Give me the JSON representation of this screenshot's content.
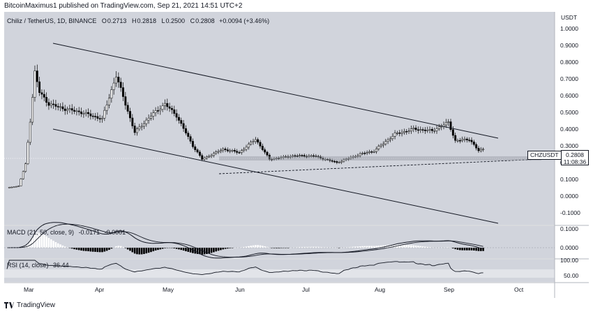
{
  "header": {
    "attribution": "BitcoinMaximus1 published on TradingView.com, Sep 21, 2021 14:51 UTC+2"
  },
  "legend": {
    "symbol": "Chiliz / TetherUS, 1D, BINANCE",
    "open_label": "O",
    "open": "0.2713",
    "high_label": "H",
    "high": "0.2818",
    "low_label": "L",
    "low": "0.2500",
    "close_label": "C",
    "close": "0.2808",
    "change": "+0.0094 (+3.46%)"
  },
  "price_axis": {
    "currency": "USDT",
    "labels": [
      "1.0000",
      "0.9000",
      "0.8000",
      "0.7000",
      "0.6000",
      "0.5000",
      "0.4000",
      "0.3000",
      "0.2000",
      "0.1000",
      "0.0000",
      "-0.1000"
    ]
  },
  "price_tag": {
    "symbol": "CHZUSDT",
    "price": "0.2808",
    "countdown": "11:08:36"
  },
  "macd": {
    "title": "MACD (21, 50, close, 9)",
    "v1": "-0.0171",
    "v2": "-0.0001",
    "axis_labels": [
      "0.1000",
      "0.0000"
    ]
  },
  "rsi": {
    "title": "RSI (14, close)",
    "value": "36.44",
    "axis_labels": [
      "100.00",
      "50.00"
    ]
  },
  "time_axis": [
    "Mar",
    "Apr",
    "May",
    "Jun",
    "Jul",
    "Aug",
    "Sep",
    "Oct"
  ],
  "footer": {
    "brand": "TradingView"
  },
  "colors": {
    "background": "#d1d4dc",
    "up": "#ffffff",
    "down": "#000000",
    "line": "#131722"
  },
  "chart_data": {
    "type": "candlestick",
    "symbol": "CHZUSDT",
    "ylim": [
      -0.13,
      1.07
    ],
    "series": [
      {
        "date": "2021-02-28",
        "close": 0.05
      },
      {
        "date": "2021-03-05",
        "close": 0.06
      },
      {
        "date": "2021-03-08",
        "close": 0.19
      },
      {
        "date": "2021-03-10",
        "close": 0.45
      },
      {
        "date": "2021-03-12",
        "close": 0.74
      },
      {
        "date": "2021-03-14",
        "close": 0.62
      },
      {
        "date": "2021-03-18",
        "close": 0.55
      },
      {
        "date": "2021-03-25",
        "close": 0.52
      },
      {
        "date": "2021-04-01",
        "close": 0.5
      },
      {
        "date": "2021-04-10",
        "close": 0.46
      },
      {
        "date": "2021-04-16",
        "close": 0.72
      },
      {
        "date": "2021-04-20",
        "close": 0.55
      },
      {
        "date": "2021-04-24",
        "close": 0.38
      },
      {
        "date": "2021-05-01",
        "close": 0.48
      },
      {
        "date": "2021-05-07",
        "close": 0.55
      },
      {
        "date": "2021-05-12",
        "close": 0.48
      },
      {
        "date": "2021-05-19",
        "close": 0.3
      },
      {
        "date": "2021-05-23",
        "close": 0.22
      },
      {
        "date": "2021-06-01",
        "close": 0.28
      },
      {
        "date": "2021-06-08",
        "close": 0.26
      },
      {
        "date": "2021-06-15",
        "close": 0.34
      },
      {
        "date": "2021-06-21",
        "close": 0.22
      },
      {
        "date": "2021-07-01",
        "close": 0.24
      },
      {
        "date": "2021-07-10",
        "close": 0.24
      },
      {
        "date": "2021-07-20",
        "close": 0.2
      },
      {
        "date": "2021-07-30",
        "close": 0.25
      },
      {
        "date": "2021-08-05",
        "close": 0.27
      },
      {
        "date": "2021-08-14",
        "close": 0.37
      },
      {
        "date": "2021-08-22",
        "close": 0.4
      },
      {
        "date": "2021-08-30",
        "close": 0.39
      },
      {
        "date": "2021-09-06",
        "close": 0.44
      },
      {
        "date": "2021-09-09",
        "close": 0.33
      },
      {
        "date": "2021-09-15",
        "close": 0.34
      },
      {
        "date": "2021-09-19",
        "close": 0.27
      },
      {
        "date": "2021-09-21",
        "close": 0.2808
      }
    ]
  }
}
